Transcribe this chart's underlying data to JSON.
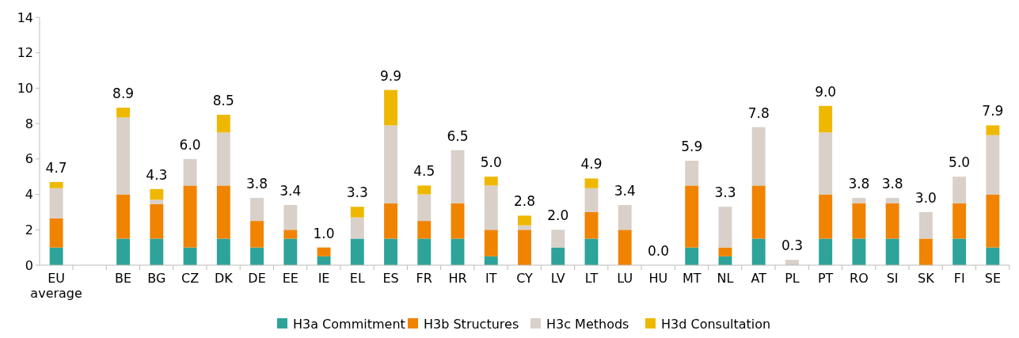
{
  "chart_data": {
    "type": "bar",
    "stacked": true,
    "categories": [
      "EU average",
      null,
      "BE",
      "BG",
      "CZ",
      "DK",
      "DE",
      "EE",
      "IE",
      "EL",
      "ES",
      "FR",
      "HR",
      "IT",
      "CY",
      "LV",
      "LT",
      "LU",
      "HU",
      "MT",
      "NL",
      "AT",
      "PL",
      "PT",
      "RO",
      "SI",
      "SK",
      "FI",
      "SE"
    ],
    "series": [
      {
        "name": "H3a Commitment",
        "color": "#2ea39a",
        "values": [
          1.0,
          null,
          1.5,
          1.5,
          1.0,
          1.5,
          1.0,
          1.5,
          0.5,
          1.5,
          1.5,
          1.5,
          1.5,
          0.5,
          0,
          1.0,
          1.5,
          0,
          0,
          1.0,
          0.5,
          1.5,
          0,
          1.5,
          1.5,
          1.5,
          0,
          1.5,
          1.0
        ]
      },
      {
        "name": "H3b Structures",
        "color": "#f08300",
        "values": [
          1.65,
          null,
          2.5,
          1.95,
          3.5,
          3.0,
          1.5,
          0.5,
          0.5,
          0,
          2.0,
          1.0,
          2.0,
          1.5,
          2.0,
          0,
          1.5,
          2.0,
          0,
          3.5,
          0.5,
          3.0,
          0,
          2.5,
          2.0,
          2.0,
          1.5,
          2.0,
          3.0
        ]
      },
      {
        "name": "H3c Methods",
        "color": "#d8d0c9",
        "values": [
          1.7,
          null,
          4.35,
          0.25,
          1.5,
          3.0,
          1.3,
          1.4,
          0,
          1.2,
          4.4,
          1.5,
          3.0,
          2.5,
          0.25,
          1.0,
          1.35,
          1.4,
          0,
          1.4,
          2.3,
          3.3,
          0.3,
          3.5,
          0.3,
          0.3,
          1.5,
          1.5,
          3.35
        ]
      },
      {
        "name": "H3d Consultation",
        "color": "#efb800",
        "values": [
          0.35,
          null,
          0.55,
          0.6,
          0,
          1.0,
          0,
          0,
          0,
          0.6,
          2.0,
          0.5,
          0,
          0.5,
          0.55,
          0,
          0.55,
          0,
          0,
          0,
          0,
          0,
          0,
          1.5,
          0,
          0,
          0,
          0,
          0.55
        ]
      }
    ],
    "totals": [
      "4.7",
      null,
      "8.9",
      "4.3",
      "6.0",
      "8.5",
      "3.8",
      "3.4",
      "1.0",
      "3.3",
      "9.9",
      "4.5",
      "6.5",
      "5.0",
      "2.8",
      "2.0",
      "4.9",
      "3.4",
      "0.0",
      "5.9",
      "3.3",
      "7.8",
      "0.3",
      "9.0",
      "3.8",
      "3.8",
      "3.0",
      "5.0",
      "7.9"
    ],
    "ylim": [
      0,
      14
    ],
    "yticks": [
      0,
      2,
      4,
      6,
      8,
      10,
      12,
      14
    ],
    "grid": false,
    "legend": "bottom"
  }
}
